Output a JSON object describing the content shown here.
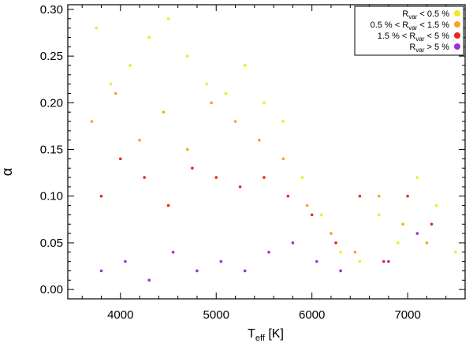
{
  "chart_data": {
    "type": "scatter",
    "title": "",
    "xlabel": {
      "main": "T",
      "sub": "eff",
      "unit": "[K]"
    },
    "ylabel": "α",
    "xlim": [
      3450,
      7600
    ],
    "ylim": [
      -0.01,
      0.305
    ],
    "x_ticks": [
      4000,
      5000,
      6000,
      7000
    ],
    "x_tick_labels": [
      "4000",
      "5000",
      "6000",
      "7000"
    ],
    "y_ticks": [
      0.0,
      0.05,
      0.1,
      0.15,
      0.2,
      0.25,
      0.3
    ],
    "y_tick_labels": [
      "0.00",
      "0.05",
      "0.10",
      "0.15",
      "0.20",
      "0.25",
      "0.30"
    ],
    "grid": false,
    "legend": {
      "placement": "top-right",
      "entries": [
        {
          "pre": "",
          "var": "R",
          "sub": "var",
          "post": " < 0.5 %",
          "color": "#f2ea1c"
        },
        {
          "pre": "0.5 % < ",
          "var": "R",
          "sub": "var",
          "post": " < 1.5 %",
          "color": "#f2a81a"
        },
        {
          "pre": "1.5 % < ",
          "var": "R",
          "sub": "var",
          "post": " < 5 %",
          "color": "#e8261a"
        },
        {
          "pre": "",
          "var": "R",
          "sub": "var",
          "post": " > 5 %",
          "color": "#9b30d8"
        }
      ]
    },
    "series": [
      {
        "name": "R_var < 0.5 %",
        "color": "#f2ea1c",
        "x": [
          3750,
          3900,
          4100,
          4300,
          4500,
          4700,
          4900,
          5100,
          5300,
          5500,
          5700,
          5900,
          6100,
          6300,
          6500,
          6700,
          6900,
          7100,
          7300,
          7500
        ],
        "y": [
          0.28,
          0.22,
          0.24,
          0.27,
          0.29,
          0.25,
          0.22,
          0.21,
          0.24,
          0.2,
          0.18,
          0.12,
          0.08,
          0.04,
          0.03,
          0.08,
          0.05,
          0.12,
          0.09,
          0.04
        ]
      },
      {
        "name": "0.5 % < R_var < 1.5 %",
        "color": "#f2a81a",
        "x": [
          3700,
          3950,
          4200,
          4450,
          4700,
          4950,
          5200,
          5450,
          5700,
          5950,
          6200,
          6450,
          6700,
          6950,
          7200
        ],
        "y": [
          0.18,
          0.21,
          0.16,
          0.19,
          0.15,
          0.2,
          0.18,
          0.16,
          0.14,
          0.09,
          0.06,
          0.04,
          0.1,
          0.07,
          0.05
        ]
      },
      {
        "name": "1.5 % < R_var < 5 %",
        "color": "#e8261a",
        "x": [
          3800,
          4000,
          4250,
          4500,
          4750,
          5000,
          5250,
          5500,
          5750,
          6000,
          6250,
          6500,
          6750,
          7000,
          7250
        ],
        "y": [
          0.1,
          0.14,
          0.12,
          0.09,
          0.13,
          0.12,
          0.11,
          0.12,
          0.1,
          0.08,
          0.05,
          0.1,
          0.03,
          0.1,
          0.07
        ]
      },
      {
        "name": "R_var > 5 %",
        "color": "#9b30d8",
        "x": [
          3800,
          4050,
          4300,
          4550,
          4800,
          5050,
          5300,
          5550,
          5800,
          6050,
          6300,
          6800,
          7100
        ],
        "y": [
          0.02,
          0.03,
          0.01,
          0.04,
          0.02,
          0.03,
          0.02,
          0.04,
          0.05,
          0.03,
          0.02,
          0.03,
          0.06
        ]
      }
    ]
  }
}
